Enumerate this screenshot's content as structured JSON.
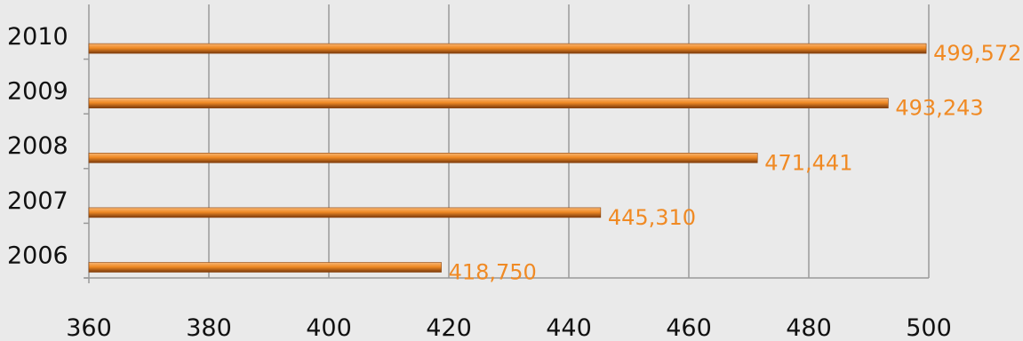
{
  "chart_data": {
    "type": "bar",
    "orientation": "horizontal",
    "categories": [
      "2010",
      "2009",
      "2008",
      "2007",
      "2006"
    ],
    "values": [
      499.572,
      493.243,
      471.441,
      445.31,
      418.75
    ],
    "data_labels": [
      "499,572",
      "493,243",
      "471,441",
      "445,310",
      "418,750"
    ],
    "xlim": [
      360,
      500
    ],
    "x_ticks": [
      "360",
      "380",
      "400",
      "420",
      "440",
      "460",
      "480",
      "500"
    ],
    "grid": true,
    "bar_color": "#f08a24",
    "label_color": "#f08a24",
    "title": "",
    "xlabel": "",
    "ylabel": ""
  }
}
